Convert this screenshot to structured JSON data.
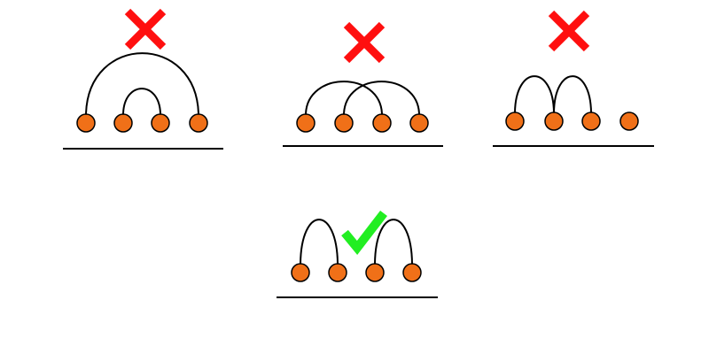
{
  "colors": {
    "background": "#ffffff",
    "node_fill": "#f07018",
    "node_stroke": "#000000",
    "arc": "#000000",
    "baseline": "#000000",
    "invalid_mark": "#ff0f0f",
    "valid_mark": "#22ee22"
  },
  "panels": [
    {
      "id": "panel-1",
      "status": "invalid",
      "status_icon": "x-mark-icon",
      "node_count": 4,
      "arcs": [
        [
          1,
          4
        ],
        [
          2,
          3
        ]
      ]
    },
    {
      "id": "panel-2",
      "status": "invalid",
      "status_icon": "x-mark-icon",
      "node_count": 4,
      "arcs": [
        [
          1,
          3
        ],
        [
          2,
          4
        ]
      ]
    },
    {
      "id": "panel-3",
      "status": "invalid",
      "status_icon": "x-mark-icon",
      "node_count": 4,
      "arcs": [
        [
          1,
          2
        ],
        [
          2,
          3
        ]
      ]
    },
    {
      "id": "panel-4",
      "status": "valid",
      "status_icon": "check-mark-icon",
      "node_count": 4,
      "arcs": [
        [
          1,
          2
        ],
        [
          3,
          4
        ]
      ]
    }
  ]
}
